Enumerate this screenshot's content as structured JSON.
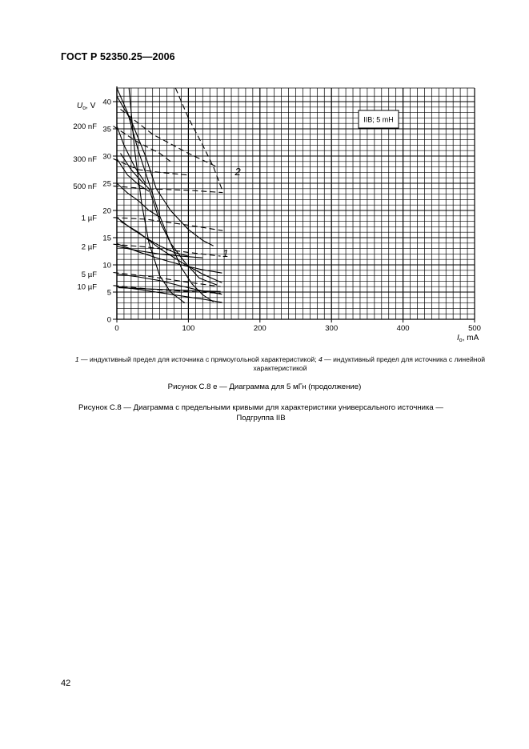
{
  "header": {
    "doc_id": "ГОСТ Р 52350.25—2006"
  },
  "chart_data": {
    "type": "line",
    "x_axis": {
      "label_main": "I",
      "label_sub": "o",
      "label_unit": ", mA",
      "min": 0,
      "max": 500,
      "ticks": [
        0,
        100,
        200,
        300,
        400,
        500
      ]
    },
    "y_axis": {
      "label_main": "U",
      "label_sub": "o",
      "label_unit": ", V",
      "min": 0,
      "max": 40,
      "ticks": [
        0,
        5,
        10,
        15,
        20,
        25,
        30,
        35,
        40
      ]
    },
    "grid": true,
    "annotation_box": "IIB; 5 mH",
    "capacitance_labels": [
      {
        "text": "200 nF",
        "y": 35.5
      },
      {
        "text": "300 nF",
        "y": 29.5
      },
      {
        "text": "500 nF",
        "y": 24.5
      },
      {
        "text": "1 µF",
        "y": 18.7
      },
      {
        "text": "2 µF",
        "y": 13.4
      },
      {
        "text": "5 µF",
        "y": 8.3
      },
      {
        "text": "10 µF",
        "y": 6.0
      }
    ],
    "curve_labels": [
      {
        "text": "2",
        "x": 165,
        "y": 26.5
      },
      {
        "text": "1",
        "x": 148,
        "y": 11.5
      }
    ],
    "series": [
      {
        "style": "solid",
        "points": [
          [
            17,
            42.5
          ],
          [
            25,
            31
          ],
          [
            35,
            21
          ],
          [
            45,
            14
          ],
          [
            60,
            8
          ],
          [
            75,
            5
          ],
          [
            95,
            3
          ]
        ]
      },
      {
        "style": "solid",
        "points": [
          [
            0,
            42.5
          ],
          [
            15,
            38
          ],
          [
            30,
            31
          ],
          [
            45,
            25
          ],
          [
            60,
            19
          ],
          [
            75,
            14
          ],
          [
            90,
            9.5
          ],
          [
            105,
            6.5
          ],
          [
            120,
            4.5
          ],
          [
            135,
            3.2
          ]
        ]
      },
      {
        "style": "dashed",
        "points": [
          [
            82,
            42.5
          ],
          [
            100,
            37
          ],
          [
            120,
            32
          ],
          [
            135,
            28
          ],
          [
            148,
            23.5
          ]
        ]
      },
      {
        "style": "solid",
        "points": [
          [
            0,
            41
          ],
          [
            20,
            36.5
          ],
          [
            40,
            30
          ],
          [
            55,
            24
          ],
          [
            75,
            20
          ],
          [
            100,
            16.5
          ],
          [
            120,
            14.5
          ],
          [
            135,
            13.5
          ]
        ]
      },
      {
        "style": "dashed",
        "points": [
          [
            5,
            38.6
          ],
          [
            50,
            34
          ],
          [
            100,
            30.5
          ],
          [
            140,
            28
          ]
        ]
      },
      {
        "style": "dashed",
        "points": [
          [
            -5,
            35.5
          ],
          [
            30,
            32.5
          ],
          [
            60,
            30.5
          ],
          [
            75,
            29
          ]
        ]
      },
      {
        "style": "solid",
        "points": [
          [
            0,
            35.5
          ],
          [
            10,
            32
          ],
          [
            25,
            28
          ],
          [
            40,
            25
          ]
        ]
      },
      {
        "style": "solid",
        "points": [
          [
            5,
            30.5
          ],
          [
            20,
            27.5
          ],
          [
            30,
            26
          ],
          [
            45,
            24
          ],
          [
            60,
            18
          ],
          [
            75,
            14
          ],
          [
            95,
            10.5
          ],
          [
            115,
            7.6
          ],
          [
            130,
            6.8
          ],
          [
            140,
            6.3
          ]
        ]
      },
      {
        "style": "dashed",
        "points": [
          [
            -5,
            29.5
          ],
          [
            30,
            27.5
          ],
          [
            60,
            27
          ],
          [
            100,
            26.5
          ]
        ]
      },
      {
        "style": "solid",
        "points": [
          [
            0,
            29.5
          ],
          [
            15,
            26.5
          ],
          [
            30,
            24.8
          ],
          [
            45,
            23.5
          ]
        ]
      },
      {
        "style": "dashed",
        "points": [
          [
            -5,
            24.5
          ],
          [
            40,
            24
          ],
          [
            100,
            23.7
          ],
          [
            148,
            23.3
          ]
        ]
      },
      {
        "style": "solid",
        "points": [
          [
            0,
            25
          ],
          [
            15,
            23.2
          ],
          [
            30,
            21.8
          ],
          [
            45,
            20
          ],
          [
            60,
            18.8
          ]
        ]
      },
      {
        "style": "dashed",
        "points": [
          [
            -5,
            18.7
          ],
          [
            40,
            18.4
          ],
          [
            100,
            17.3
          ],
          [
            148,
            16.3
          ]
        ]
      },
      {
        "style": "solid",
        "points": [
          [
            0,
            18.7
          ],
          [
            20,
            16.7
          ],
          [
            40,
            15
          ],
          [
            60,
            13.5
          ],
          [
            80,
            12.3
          ],
          [
            100,
            11.6
          ]
        ]
      },
      {
        "style": "solid",
        "points": [
          [
            5,
            18
          ],
          [
            30,
            16
          ],
          [
            60,
            13
          ],
          [
            90,
            10.5
          ],
          [
            120,
            8.3
          ],
          [
            147,
            6.7
          ]
        ]
      },
      {
        "style": "dashed",
        "points": [
          [
            -5,
            13.8
          ],
          [
            40,
            13.3
          ],
          [
            100,
            12.3
          ],
          [
            145,
            11.6
          ]
        ]
      },
      {
        "style": "solid",
        "points": [
          [
            0,
            13.4
          ],
          [
            30,
            12.6
          ],
          [
            60,
            12
          ],
          [
            90,
            11.6
          ],
          [
            120,
            11.3
          ]
        ]
      },
      {
        "style": "solid",
        "points": [
          [
            0,
            13.9
          ],
          [
            30,
            12.4
          ],
          [
            60,
            11.1
          ],
          [
            90,
            10
          ],
          [
            120,
            9.1
          ],
          [
            147,
            8.5
          ]
        ]
      },
      {
        "style": "dashed",
        "points": [
          [
            -5,
            8.6
          ],
          [
            50,
            7.8
          ],
          [
            100,
            6.8
          ],
          [
            145,
            6
          ]
        ]
      },
      {
        "style": "solid",
        "points": [
          [
            0,
            8.3
          ],
          [
            30,
            7.8
          ],
          [
            60,
            7.1
          ],
          [
            90,
            6.1
          ],
          [
            120,
            5.2
          ],
          [
            147,
            4.6
          ]
        ]
      },
      {
        "style": "dashed",
        "points": [
          [
            -5,
            6.2
          ],
          [
            50,
            5.5
          ],
          [
            100,
            5.1
          ],
          [
            145,
            4.8
          ]
        ]
      },
      {
        "style": "solid",
        "points": [
          [
            0,
            6
          ],
          [
            30,
            5.5
          ],
          [
            60,
            4.9
          ],
          [
            90,
            4.3
          ],
          [
            120,
            3.7
          ],
          [
            147,
            3.1
          ]
        ]
      },
      {
        "style": "solid",
        "points": [
          [
            2,
            5.8
          ],
          [
            40,
            5.6
          ],
          [
            80,
            5.4
          ],
          [
            120,
            5.2
          ],
          [
            145,
            5.1
          ]
        ]
      }
    ]
  },
  "captions": {
    "legend_1_num": "1",
    "legend_1_text": " — индуктивный предел для источника с прямоугольной характеристикой; ",
    "legend_4_num": "4",
    "legend_4_text": " — индуктивный предел для источника с линейной характеристикой",
    "figure_e": "Рисунок С.8 е — Диаграмма для 5 мГн (продолжение)",
    "figure_main": "Рисунок  С.8 — Диаграмма с предельными кривыми для характеристики универсального источника — Подгруппа IIB"
  },
  "page_number": "42"
}
